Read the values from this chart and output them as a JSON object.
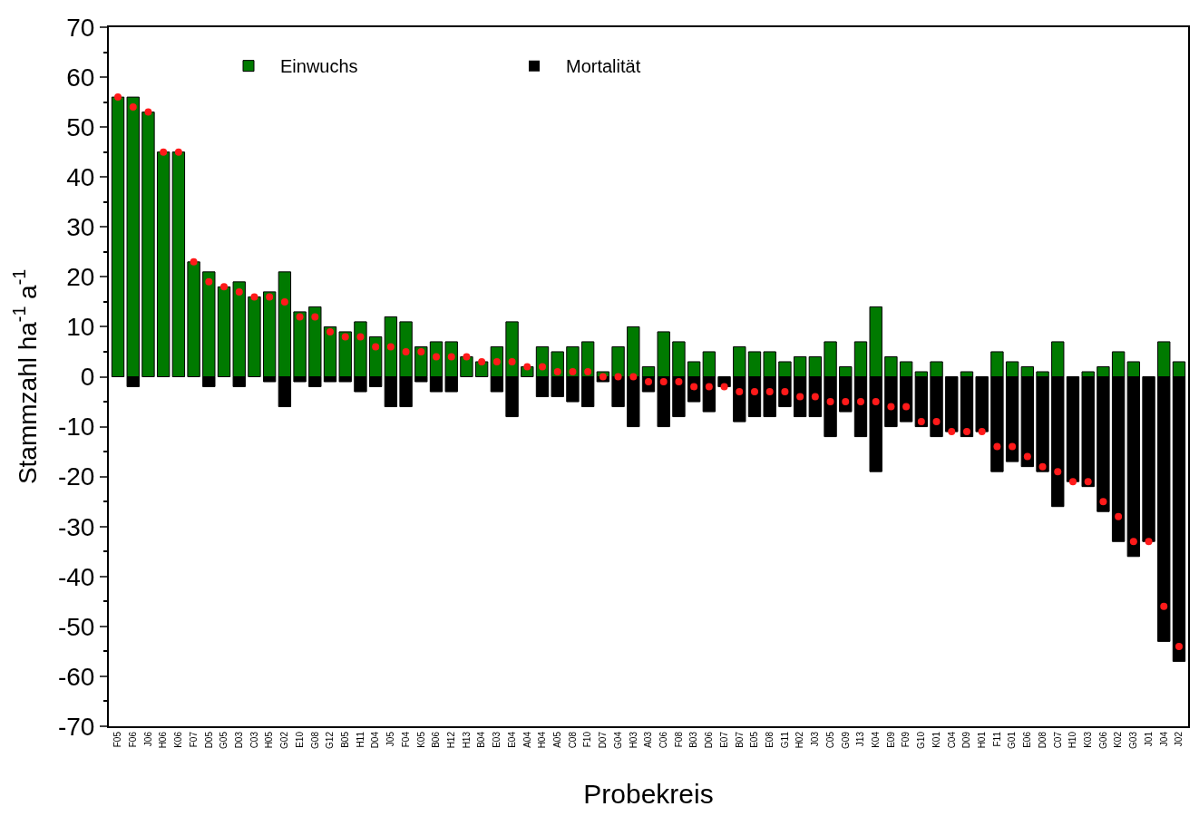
{
  "chart_data": {
    "type": "bar",
    "xlabel": "Probekreis",
    "ylabel": "Stammzahl ha$^{-1}$ a$^{-1}$",
    "categories": [
      "F05",
      "F06",
      "J06",
      "H06",
      "K06",
      "F07",
      "D05",
      "G05",
      "D03",
      "C03",
      "H05",
      "G02",
      "E10",
      "G08",
      "G12",
      "B05",
      "H11",
      "D04",
      "J05",
      "F04",
      "K05",
      "B06",
      "H12",
      "H13",
      "B04",
      "E03",
      "E04",
      "A04",
      "H04",
      "A05",
      "C08",
      "F10",
      "D07",
      "G04",
      "H03",
      "A03",
      "C06",
      "F08",
      "B03",
      "D06",
      "E07",
      "B07",
      "E05",
      "E08",
      "G11",
      "H02",
      "J03",
      "C05",
      "G09",
      "J13",
      "K04",
      "E09",
      "F09",
      "G10",
      "K01",
      "C04",
      "D09",
      "H01",
      "F11",
      "G01",
      "E06",
      "D08",
      "C07",
      "H10",
      "K03",
      "G06",
      "K02",
      "G03",
      "J01",
      "J04",
      "J02"
    ],
    "series": [
      {
        "name": "Einwuchs",
        "color": "#007a00",
        "values": [
          56,
          56,
          53,
          45,
          45,
          23,
          21,
          18,
          19,
          16,
          17,
          21,
          13,
          14,
          10,
          9,
          11,
          8,
          12,
          11,
          6,
          7,
          7,
          4,
          3,
          6,
          11,
          2,
          6,
          5,
          6,
          7,
          1,
          6,
          10,
          2,
          9,
          7,
          3,
          5,
          0,
          6,
          5,
          5,
          3,
          4,
          4,
          7,
          2,
          7,
          14,
          4,
          3,
          1,
          3,
          0,
          1,
          0,
          5,
          3,
          2,
          1,
          7,
          0,
          1,
          2,
          5,
          3,
          0,
          7,
          3
        ]
      },
      {
        "name": "Mortalität",
        "color": "#000000",
        "values": [
          0,
          -2,
          0,
          0,
          0,
          0,
          -2,
          0,
          -2,
          0,
          -1,
          -6,
          -1,
          -2,
          -1,
          -1,
          -3,
          -2,
          -6,
          -6,
          -1,
          -3,
          -3,
          0,
          0,
          -3,
          -8,
          0,
          -4,
          -4,
          -5,
          -6,
          -1,
          -6,
          -10,
          -3,
          -10,
          -8,
          -5,
          -7,
          -2,
          -9,
          -8,
          -8,
          -6,
          -8,
          -8,
          -12,
          -7,
          -12,
          -19,
          -10,
          -9,
          -10,
          -12,
          -11,
          -12,
          -11,
          -19,
          -17,
          -18,
          -19,
          -26,
          -21,
          -22,
          -27,
          -33,
          -36,
          -33,
          -53,
          -57
        ]
      },
      {
        "type": "scatter",
        "color": "#ff1a1a",
        "marker": "circle",
        "values": [
          56,
          54,
          53,
          45,
          45,
          23,
          19,
          18,
          17,
          16,
          16,
          15,
          12,
          12,
          9,
          8,
          8,
          6,
          6,
          5,
          5,
          4,
          4,
          4,
          3,
          3,
          3,
          2,
          2,
          1,
          1,
          1,
          0,
          0,
          0,
          -1,
          -1,
          -1,
          -2,
          -2,
          -2,
          -3,
          -3,
          -3,
          -3,
          -4,
          -4,
          -5,
          -5,
          -5,
          -5,
          -6,
          -6,
          -9,
          -9,
          -11,
          -11,
          -11,
          -14,
          -14,
          -16,
          -18,
          -19,
          -21,
          -21,
          -25,
          -28,
          -33,
          -33,
          -46,
          -54
        ]
      }
    ],
    "stacked": true,
    "ylim": [
      -70,
      70
    ],
    "yticks": [
      -70,
      -60,
      -50,
      -40,
      -30,
      -20,
      -10,
      0,
      10,
      20,
      30,
      40,
      50,
      60,
      70
    ],
    "grid": false,
    "legend": "top left"
  }
}
